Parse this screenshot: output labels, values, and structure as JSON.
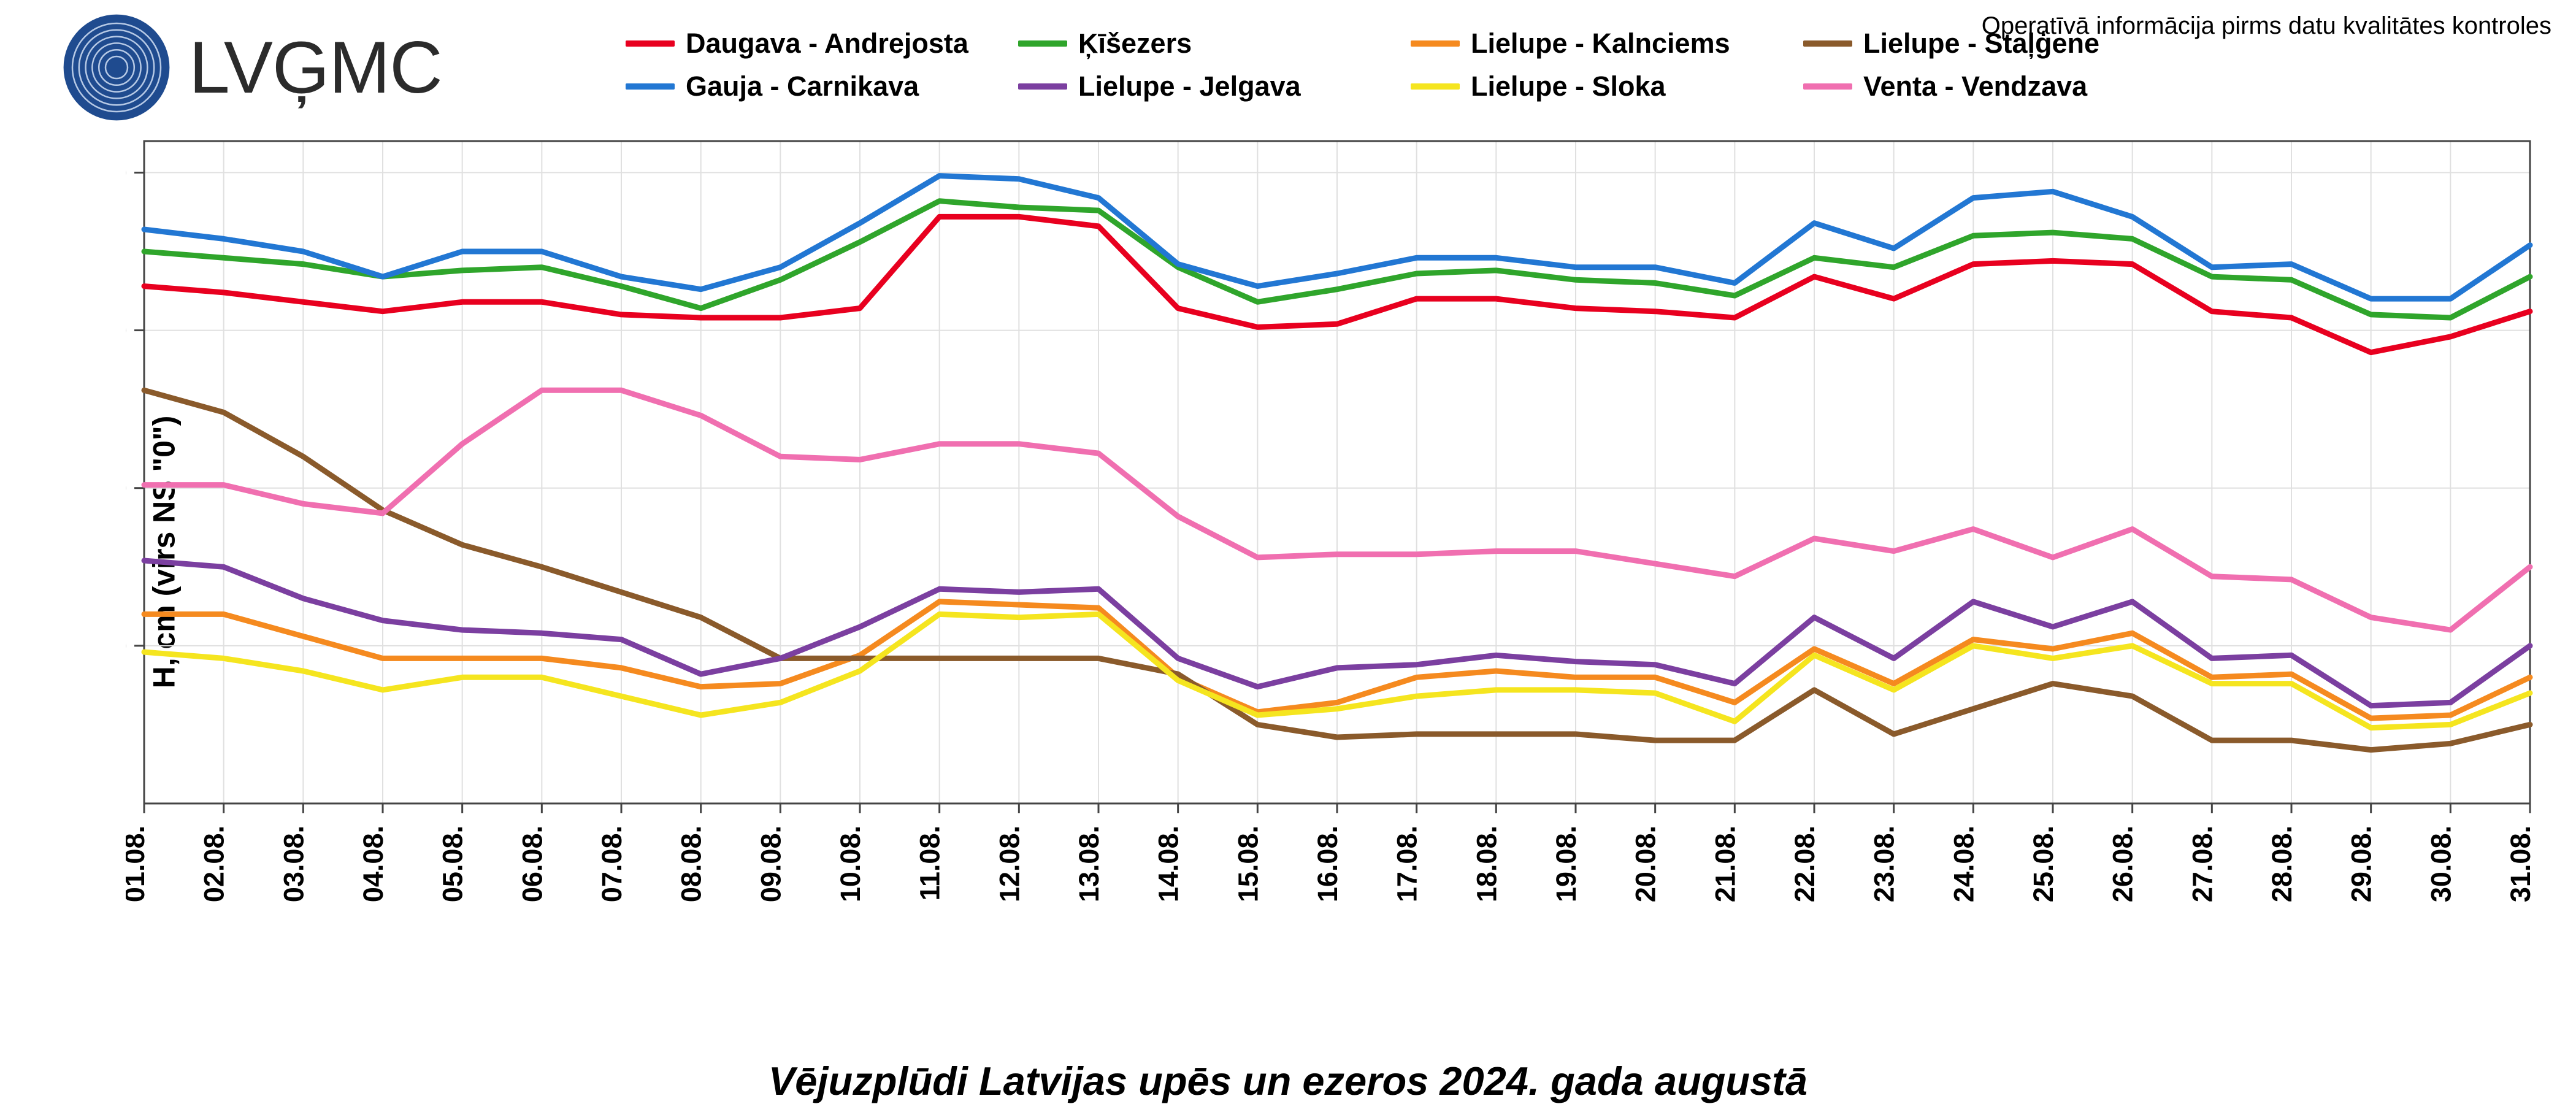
{
  "header": {
    "org": "LVĢMC",
    "note": "Operatīvā informācija pirms datu kvalitātes kontroles",
    "logo_colors": {
      "outer": "#1f4b8f",
      "inner": "#ffffff"
    }
  },
  "chart": {
    "type": "line",
    "subtitle": "Vējuzplūdi Latvijas upēs un ezeros 2024. gada augustā",
    "ylabel": "H, cm (virs NS \"0\")",
    "background_color": "#ffffff",
    "grid_color": "#e0e0e0",
    "axis_color": "#444444",
    "line_width": 9,
    "label_fontsize": 50,
    "tick_fontsize": 45,
    "subtitle_fontsize": 65,
    "xlim": [
      1,
      31
    ],
    "ylim": [
      0,
      210
    ],
    "ytick_step": 50,
    "yticks": [
      50,
      100,
      150,
      200
    ],
    "x_categories": [
      "01.08.",
      "02.08.",
      "03.08.",
      "04.08.",
      "05.08.",
      "06.08.",
      "07.08.",
      "08.08.",
      "09.08.",
      "10.08.",
      "11.08.",
      "12.08.",
      "13.08.",
      "14.08.",
      "15.08.",
      "16.08.",
      "17.08.",
      "18.08.",
      "19.08.",
      "20.08.",
      "21.08.",
      "22.08.",
      "23.08.",
      "24.08.",
      "25.08.",
      "26.08.",
      "27.08.",
      "28.08.",
      "29.08.",
      "30.08.",
      "31.08."
    ],
    "series": [
      {
        "name": "Daugava - Andrejosta",
        "color": "#e8001f",
        "values": [
          164,
          162,
          159,
          156,
          159,
          159,
          155,
          154,
          154,
          157,
          186,
          186,
          183,
          157,
          151,
          152,
          160,
          160,
          157,
          156,
          154,
          167,
          160,
          171,
          172,
          171,
          156,
          154,
          143,
          148,
          156
        ]
      },
      {
        "name": "Ķīšezers",
        "color": "#2fa52b",
        "values": [
          175,
          173,
          171,
          167,
          169,
          170,
          164,
          157,
          166,
          178,
          191,
          189,
          188,
          170,
          159,
          163,
          168,
          169,
          166,
          165,
          161,
          173,
          170,
          180,
          181,
          179,
          167,
          166,
          155,
          154,
          167
        ]
      },
      {
        "name": "Lielupe - Kalnciems",
        "color": "#f58a1f",
        "values": [
          60,
          60,
          53,
          46,
          46,
          46,
          43,
          37,
          38,
          47,
          64,
          63,
          62,
          40,
          29,
          32,
          40,
          42,
          40,
          40,
          32,
          49,
          38,
          52,
          49,
          54,
          40,
          41,
          27,
          28,
          40
        ]
      },
      {
        "name": "Lielupe - Staļģene",
        "color": "#8a5a2b",
        "values": [
          131,
          124,
          110,
          93,
          82,
          75,
          67,
          59,
          46,
          46,
          46,
          46,
          46,
          41,
          25,
          21,
          22,
          22,
          22,
          20,
          20,
          36,
          22,
          30,
          38,
          34,
          20,
          20,
          17,
          19,
          25
        ]
      },
      {
        "name": "Gauja - Carnikava",
        "color": "#2277d3",
        "values": [
          182,
          179,
          175,
          167,
          175,
          175,
          167,
          163,
          170,
          184,
          199,
          198,
          192,
          171,
          164,
          168,
          173,
          173,
          170,
          170,
          165,
          184,
          176,
          192,
          194,
          186,
          170,
          171,
          160,
          160,
          177
        ]
      },
      {
        "name": "Lielupe - Jelgava",
        "color": "#7b3fa0",
        "values": [
          77,
          75,
          65,
          58,
          55,
          54,
          52,
          41,
          46,
          56,
          68,
          67,
          68,
          46,
          37,
          43,
          44,
          47,
          45,
          44,
          38,
          59,
          46,
          64,
          56,
          64,
          46,
          47,
          31,
          32,
          50
        ]
      },
      {
        "name": "Lielupe - Sloka",
        "color": "#f5e51f",
        "values": [
          48,
          46,
          42,
          36,
          40,
          40,
          34,
          28,
          32,
          42,
          60,
          59,
          60,
          39,
          28,
          30,
          34,
          36,
          36,
          35,
          26,
          47,
          36,
          50,
          46,
          50,
          38,
          38,
          24,
          25,
          35
        ]
      },
      {
        "name": "Venta - Vendzava",
        "color": "#f06fb0",
        "values": [
          101,
          101,
          95,
          92,
          114,
          131,
          131,
          123,
          110,
          109,
          114,
          114,
          111,
          91,
          78,
          79,
          79,
          80,
          80,
          76,
          72,
          84,
          80,
          87,
          78,
          87,
          72,
          71,
          59,
          55,
          75
        ]
      }
    ],
    "legend_order": [
      "Daugava - Andrejosta",
      "Ķīšezers",
      "Lielupe - Kalnciems",
      "Lielupe - Staļģene",
      "Gauja - Carnikava",
      "Lielupe - Jelgava",
      "Lielupe - Sloka",
      "Venta - Vendzava"
    ]
  }
}
